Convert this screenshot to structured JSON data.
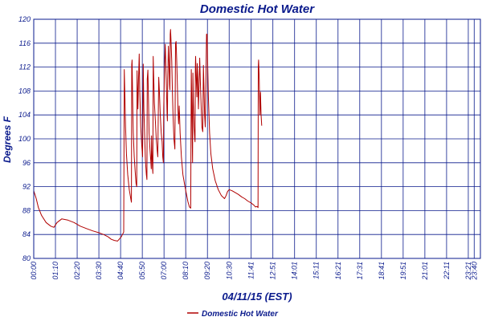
{
  "chart_data": {
    "type": "line",
    "title": "Domestic Hot Water",
    "xlabel": "04/11/15 (EST)",
    "ylabel": "Degrees F",
    "ylim": [
      80,
      120
    ],
    "yticks": [
      80,
      84,
      88,
      92,
      96,
      100,
      104,
      108,
      112,
      116,
      120
    ],
    "x_unit": "minutes since 00:00",
    "xlim": [
      0,
      1440
    ],
    "xticks": [
      {
        "label": "00:00",
        "t": 0
      },
      {
        "label": "01:10",
        "t": 70
      },
      {
        "label": "02:20",
        "t": 140
      },
      {
        "label": "03:30",
        "t": 210
      },
      {
        "label": "04:40",
        "t": 280
      },
      {
        "label": "05:50",
        "t": 350
      },
      {
        "label": "07:00",
        "t": 420
      },
      {
        "label": "08:10",
        "t": 490
      },
      {
        "label": "09:20",
        "t": 560
      },
      {
        "label": "10:30",
        "t": 630
      },
      {
        "label": "11:41",
        "t": 701
      },
      {
        "label": "12:51",
        "t": 771
      },
      {
        "label": "14:01",
        "t": 841
      },
      {
        "label": "15:11",
        "t": 911
      },
      {
        "label": "16:21",
        "t": 981
      },
      {
        "label": "17:31",
        "t": 1051
      },
      {
        "label": "18:41",
        "t": 1121
      },
      {
        "label": "19:51",
        "t": 1191
      },
      {
        "label": "21:01",
        "t": 1261
      },
      {
        "label": "22:11",
        "t": 1331
      },
      {
        "label": "23:21",
        "t": 1401
      },
      {
        "label": "23:40",
        "t": 1420
      }
    ],
    "grid": true,
    "legend": "bottom-center",
    "colors": {
      "series": "#b00000",
      "grid": "#0a1a8c",
      "text": "#0a1a8c"
    },
    "series": [
      {
        "name": "Domestic Hot Water",
        "points": [
          [
            0,
            91.3
          ],
          [
            8,
            90
          ],
          [
            15,
            88.5
          ],
          [
            25,
            87.2
          ],
          [
            40,
            86
          ],
          [
            55,
            85.4
          ],
          [
            65,
            85.2
          ],
          [
            75,
            86
          ],
          [
            90,
            86.6
          ],
          [
            110,
            86.4
          ],
          [
            130,
            86
          ],
          [
            150,
            85.4
          ],
          [
            170,
            85
          ],
          [
            190,
            84.6
          ],
          [
            210,
            84.3
          ],
          [
            225,
            84
          ],
          [
            240,
            83.6
          ],
          [
            250,
            83.2
          ],
          [
            260,
            83
          ],
          [
            270,
            82.9
          ],
          [
            282,
            83.6
          ],
          [
            290,
            84.4
          ],
          [
            292,
            111.6
          ],
          [
            294,
            107
          ],
          [
            296,
            102
          ],
          [
            299,
            97.5
          ],
          [
            303,
            94
          ],
          [
            308,
            91.5
          ],
          [
            313,
            89.9
          ],
          [
            315,
            89.4
          ],
          [
            316,
            112.4
          ],
          [
            317,
            113.2
          ],
          [
            319,
            106
          ],
          [
            321,
            101
          ],
          [
            324,
            97
          ],
          [
            327,
            94.5
          ],
          [
            330,
            92.5
          ],
          [
            332,
            92
          ],
          [
            333,
            111.4
          ],
          [
            336,
            105
          ],
          [
            338,
            110.2
          ],
          [
            340,
            114.2
          ],
          [
            342,
            108
          ],
          [
            345,
            102
          ],
          [
            348,
            99
          ],
          [
            351,
            97
          ],
          [
            353,
            112.5
          ],
          [
            355,
            105
          ],
          [
            358,
            100
          ],
          [
            360,
            96.5
          ],
          [
            363,
            94
          ],
          [
            365,
            93.2
          ],
          [
            366,
            110
          ],
          [
            368,
            111.5
          ],
          [
            370,
            106
          ],
          [
            372,
            101
          ],
          [
            375,
            98
          ],
          [
            377,
            96.5
          ],
          [
            379,
            95
          ],
          [
            380,
            100.5
          ],
          [
            381,
            98
          ],
          [
            383,
            95
          ],
          [
            384,
            94.2
          ],
          [
            385,
            113.8
          ],
          [
            387,
            110
          ],
          [
            389,
            106
          ],
          [
            392,
            103
          ],
          [
            395,
            100
          ],
          [
            398,
            98
          ],
          [
            400,
            97
          ],
          [
            402,
            106
          ],
          [
            403,
            110.3
          ],
          [
            405,
            108
          ],
          [
            408,
            104
          ],
          [
            411,
            101
          ],
          [
            414,
            99.5
          ],
          [
            416,
            97
          ],
          [
            418,
            96
          ],
          [
            419,
            105
          ],
          [
            422,
            112.5
          ],
          [
            424,
            115.8
          ],
          [
            426,
            112
          ],
          [
            428,
            108
          ],
          [
            430,
            104
          ],
          [
            431,
            103
          ],
          [
            432,
            110
          ],
          [
            434,
            115.5
          ],
          [
            436,
            113
          ],
          [
            438,
            109
          ],
          [
            439,
            108.2
          ],
          [
            440,
            117.5
          ],
          [
            441,
            118.3
          ],
          [
            443,
            116
          ],
          [
            445,
            113
          ],
          [
            447,
            108
          ],
          [
            449,
            104
          ],
          [
            452,
            100
          ],
          [
            455,
            98.3
          ],
          [
            457,
            116
          ],
          [
            459,
            116.3
          ],
          [
            461,
            113
          ],
          [
            463,
            109
          ],
          [
            465,
            105
          ],
          [
            467,
            102.5
          ],
          [
            468,
            104
          ],
          [
            469,
            105.5
          ],
          [
            470,
            104
          ],
          [
            472,
            101
          ],
          [
            476,
            97
          ],
          [
            481,
            94
          ],
          [
            487,
            92.2
          ],
          [
            492,
            90.8
          ],
          [
            497,
            89.5
          ],
          [
            502,
            88.6
          ],
          [
            506,
            88.4
          ],
          [
            508,
            111.6
          ],
          [
            510,
            104
          ],
          [
            512,
            96
          ],
          [
            513,
            111
          ],
          [
            515,
            106
          ],
          [
            517,
            102
          ],
          [
            519,
            100
          ],
          [
            520,
            99.5
          ],
          [
            521,
            112
          ],
          [
            522,
            113.8
          ],
          [
            524,
            110
          ],
          [
            526,
            107
          ],
          [
            527,
            112.6
          ],
          [
            529,
            110
          ],
          [
            531,
            105
          ],
          [
            533,
            108.8
          ],
          [
            535,
            113.5
          ],
          [
            537,
            110
          ],
          [
            540,
            105
          ],
          [
            542,
            102
          ],
          [
            545,
            101.2
          ],
          [
            546,
            107
          ],
          [
            547,
            112.3
          ],
          [
            549,
            108
          ],
          [
            551,
            104
          ],
          [
            553,
            102
          ],
          [
            555,
            110
          ],
          [
            557,
            117.5
          ],
          [
            559,
            117.5
          ],
          [
            561,
            112
          ],
          [
            563,
            107
          ],
          [
            567,
            101
          ],
          [
            571,
            97.5
          ],
          [
            577,
            95
          ],
          [
            585,
            93
          ],
          [
            595,
            91.5
          ],
          [
            605,
            90.5
          ],
          [
            615,
            90
          ],
          [
            620,
            90.5
          ],
          [
            625,
            91.2
          ],
          [
            630,
            91.5
          ],
          [
            640,
            91.3
          ],
          [
            650,
            91
          ],
          [
            660,
            90.7
          ],
          [
            670,
            90.3
          ],
          [
            680,
            90
          ],
          [
            690,
            89.6
          ],
          [
            700,
            89.3
          ],
          [
            710,
            88.9
          ],
          [
            715,
            88.6
          ],
          [
            720,
            88.7
          ],
          [
            723,
            88.5
          ],
          [
            724,
            112
          ],
          [
            725,
            113.2
          ],
          [
            727,
            110
          ],
          [
            729,
            104
          ],
          [
            730,
            106
          ],
          [
            731,
            107.8
          ],
          [
            733,
            104
          ],
          [
            735,
            102.2
          ]
        ]
      }
    ]
  }
}
